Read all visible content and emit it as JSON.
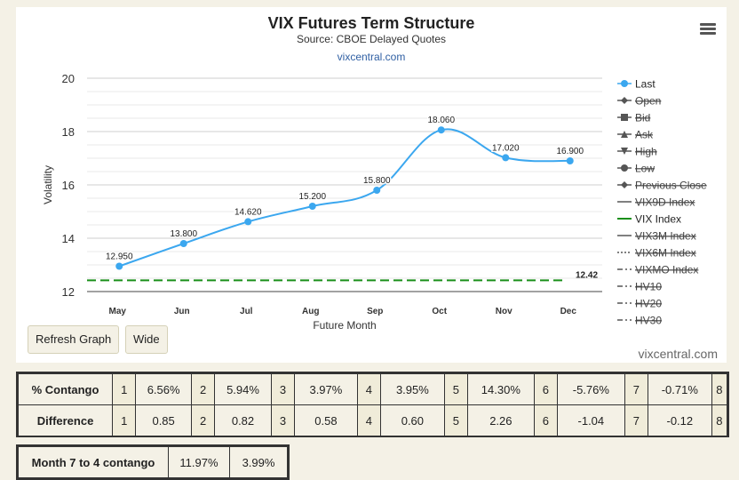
{
  "chart_data": {
    "type": "line",
    "title": "VIX Futures Term Structure",
    "subtitle": "Source: CBOE Delayed Quotes",
    "source_link": "vixcentral.com",
    "xlabel": "Future Month",
    "ylabel": "Volatility",
    "categories": [
      "May",
      "Jun",
      "Jul",
      "Aug",
      "Sep",
      "Oct",
      "Nov",
      "Dec"
    ],
    "ylim": [
      12,
      20
    ],
    "yticks": [
      12,
      14,
      16,
      18,
      20
    ],
    "grid": true,
    "legend_position": "right",
    "series": [
      {
        "name": "Last",
        "values": [
          12.95,
          13.8,
          14.62,
          15.2,
          15.8,
          18.06,
          17.02,
          16.9
        ],
        "labels": [
          "12.950",
          "13.800",
          "14.620",
          "15.200",
          "15.800",
          "18.060",
          "17.020",
          "16.900"
        ],
        "color": "#3ba7ef"
      },
      {
        "name": "VIX Index",
        "value": 12.42,
        "label": "12.42",
        "color": "#1a8f1a"
      }
    ],
    "legend": [
      {
        "name": "Last",
        "symbol": "circle",
        "enabled": true
      },
      {
        "name": "Open",
        "symbol": "diamond",
        "enabled": false
      },
      {
        "name": "Bid",
        "symbol": "square",
        "enabled": false
      },
      {
        "name": "Ask",
        "symbol": "triangle",
        "enabled": false
      },
      {
        "name": "High",
        "symbol": "triangle-down",
        "enabled": false
      },
      {
        "name": "Low",
        "symbol": "circle",
        "enabled": false
      },
      {
        "name": "Previous Close",
        "symbol": "diamond",
        "enabled": false
      },
      {
        "name": "VIX9D Index",
        "symbol": "line",
        "enabled": false
      },
      {
        "name": "VIX Index",
        "symbol": "line",
        "enabled": true,
        "color": "#1a8f1a"
      },
      {
        "name": "VIX3M Index",
        "symbol": "line",
        "enabled": false
      },
      {
        "name": "VIX6M Index",
        "symbol": "dotted",
        "enabled": false
      },
      {
        "name": "VIXMO Index",
        "symbol": "dashdot",
        "enabled": false
      },
      {
        "name": "HV10",
        "symbol": "dashdot",
        "enabled": false
      },
      {
        "name": "HV20",
        "symbol": "dashdot",
        "enabled": false
      },
      {
        "name": "HV30",
        "symbol": "dashdot",
        "enabled": false
      }
    ]
  },
  "buttons": {
    "refresh": "Refresh Graph",
    "wide": "Wide"
  },
  "credit": "vixcentral.com",
  "tables": {
    "contango_label": "% Contango",
    "difference_label": "Difference",
    "contango": [
      {
        "n": "1",
        "v": "6.56%"
      },
      {
        "n": "2",
        "v": "5.94%"
      },
      {
        "n": "3",
        "v": "3.97%"
      },
      {
        "n": "4",
        "v": "3.95%"
      },
      {
        "n": "5",
        "v": "14.30%"
      },
      {
        "n": "6",
        "v": "-5.76%"
      },
      {
        "n": "7",
        "v": "-0.71%"
      },
      {
        "n": "8",
        "v": ""
      }
    ],
    "difference": [
      {
        "n": "1",
        "v": "0.85"
      },
      {
        "n": "2",
        "v": "0.82"
      },
      {
        "n": "3",
        "v": "0.58"
      },
      {
        "n": "4",
        "v": "0.60"
      },
      {
        "n": "5",
        "v": "2.26"
      },
      {
        "n": "6",
        "v": "-1.04"
      },
      {
        "n": "7",
        "v": "-0.12"
      },
      {
        "n": "8",
        "v": ""
      }
    ],
    "month_label": "Month 7 to 4 contango",
    "month_values": [
      "11.97%",
      "3.99%"
    ]
  }
}
